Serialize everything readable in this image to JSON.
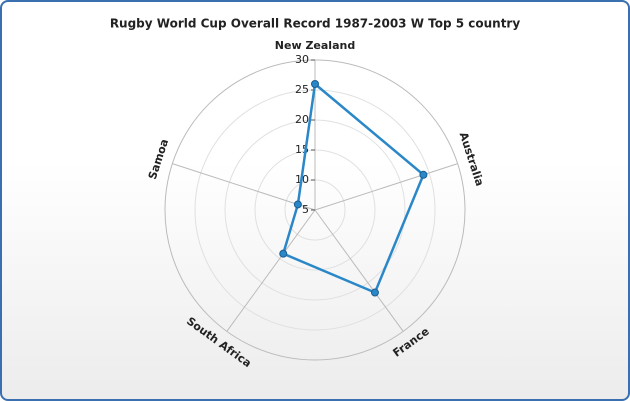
{
  "chart_data": {
    "type": "radar",
    "title": "Rugby World Cup Overall Record 1987-2003 W Top 5 country",
    "categories": [
      "New Zealand",
      "Australia",
      "France",
      "South Africa",
      "Samoa"
    ],
    "values": [
      26,
      24,
      22,
      14,
      8
    ],
    "color": "#2a87c8",
    "ylim": [
      5,
      30
    ],
    "yticks": [
      5,
      10,
      15,
      20,
      25,
      30
    ],
    "grid": true
  }
}
